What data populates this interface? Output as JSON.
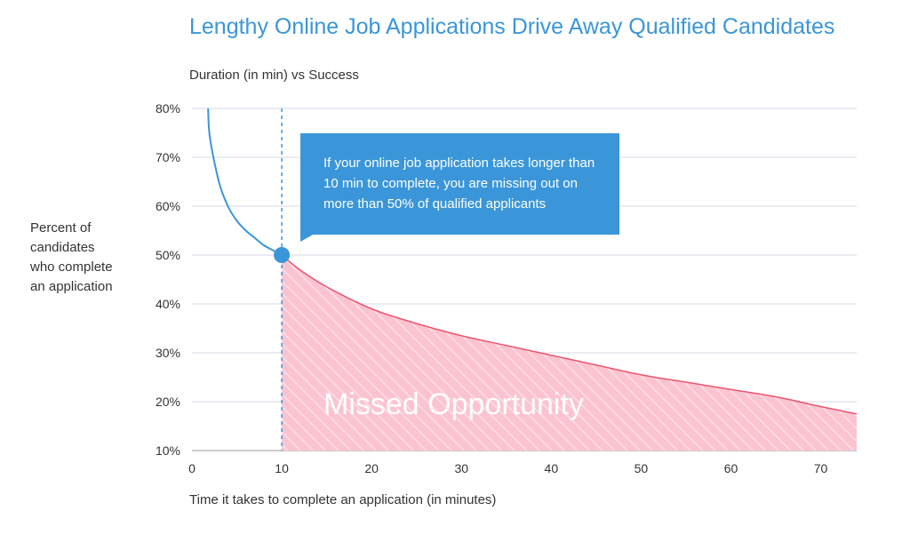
{
  "title": "Lengthy Online Job Applications Drive Away Qualified Candidates",
  "subtitle": "Duration (in min) vs Success",
  "ylabel_lines": [
    "Percent of",
    "candidates",
    "who complete",
    "an application"
  ],
  "xlabel": "Time it takes to complete an application (in minutes)",
  "callout": "If your online job application takes longer than 10 min to complete, you are missing out on more than 50% of qualified applicants",
  "region_label": "Missed Opportunity",
  "colors": {
    "accent": "#3a96d8",
    "curve_after": "#e8566f",
    "fill": "#fbc3d0",
    "grid": "#d4d9e6"
  },
  "chart_data": {
    "type": "line",
    "title": "Lengthy Online Job Applications Drive Away Qualified Candidates",
    "subtitle": "Duration (in min) vs Success",
    "xlabel": "Time it takes to complete an application (in minutes)",
    "ylabel": "Percent of candidates who complete an application",
    "xlim": [
      0,
      74
    ],
    "ylim": [
      10,
      80
    ],
    "xticks": [
      "0",
      "10",
      "20",
      "30",
      "40",
      "50",
      "60",
      "70"
    ],
    "yticks": [
      "10%",
      "20%",
      "30%",
      "40%",
      "50%",
      "60%",
      "70%",
      "80%"
    ],
    "grid": "horizontal",
    "series": [
      {
        "x": [
          1.8,
          2,
          3,
          4,
          5,
          6,
          7,
          8,
          9,
          10,
          12,
          15,
          20,
          25,
          30,
          35,
          40,
          45,
          50,
          55,
          60,
          65,
          70,
          74
        ],
        "y": [
          80,
          74,
          65,
          60,
          57,
          55,
          53.5,
          52,
          51,
          50,
          47,
          43.5,
          39,
          36,
          33.5,
          31.5,
          29.5,
          27.5,
          25.5,
          24,
          22.5,
          21,
          19,
          17.5
        ]
      }
    ],
    "highlight_point": {
      "x": 10,
      "y": 50
    },
    "reference_line_x": 10,
    "shaded_region": {
      "x_from": 10,
      "x_to": 74
    }
  }
}
